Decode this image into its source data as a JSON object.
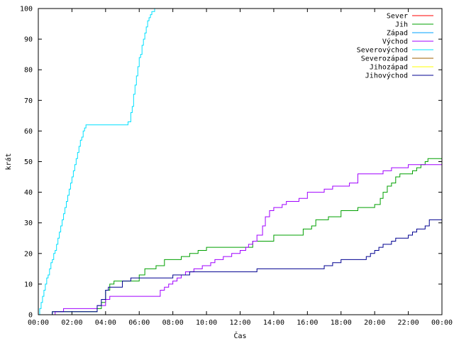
{
  "chart_data": {
    "type": "line",
    "title": "",
    "xlabel": "Čas",
    "ylabel": "krát",
    "xlim": [
      "00:00",
      "24:00"
    ],
    "ylim": [
      0,
      100
    ],
    "grid": false,
    "legend_position": "top-right",
    "x_ticks": [
      "00:00",
      "02:00",
      "04:00",
      "06:00",
      "08:00",
      "10:00",
      "12:00",
      "14:00",
      "16:00",
      "18:00",
      "20:00",
      "22:00",
      "00:00"
    ],
    "y_ticks": [
      "0",
      "10",
      "20",
      "30",
      "40",
      "50",
      "60",
      "70",
      "80",
      "90",
      "100"
    ],
    "series": [
      {
        "name": "Sever",
        "color": "#ff0000",
        "step": true,
        "x": [],
        "y": []
      },
      {
        "name": "Jih",
        "color": "#00a000",
        "step": true,
        "x": [
          "00:00",
          "00:50",
          "01:00",
          "02:00",
          "03:30",
          "03:45",
          "04:00",
          "04:15",
          "04:30",
          "05:00",
          "06:00",
          "06:20",
          "07:00",
          "07:30",
          "08:20",
          "08:30",
          "08:45",
          "09:00",
          "09:30",
          "10:00",
          "12:45",
          "13:00",
          "14:00",
          "15:45",
          "16:15",
          "16:30",
          "17:15",
          "18:00",
          "18:45",
          "19:00",
          "19:30",
          "20:00",
          "20:20",
          "20:30",
          "20:45",
          "21:00",
          "21:15",
          "21:30",
          "22:00",
          "22:15",
          "22:30",
          "22:45",
          "23:00",
          "23:10",
          "24:00"
        ],
        "y": [
          0,
          1,
          1,
          1,
          2,
          4,
          8,
          10,
          11,
          11,
          13,
          15,
          16,
          18,
          18,
          19,
          19,
          20,
          21,
          22,
          24,
          24,
          26,
          28,
          29,
          31,
          32,
          34,
          34,
          35,
          35,
          36,
          38,
          40,
          42,
          43,
          45,
          46,
          46,
          47,
          48,
          49,
          50,
          51,
          51
        ]
      },
      {
        "name": "Západ",
        "color": "#00a0ff",
        "step": true,
        "x": [],
        "y": []
      },
      {
        "name": "Východ",
        "color": "#a000ff",
        "step": true,
        "x": [
          "00:00",
          "01:00",
          "01:30",
          "02:00",
          "03:00",
          "03:30",
          "04:00",
          "04:15",
          "05:00",
          "06:00",
          "06:30",
          "07:00",
          "07:15",
          "07:30",
          "07:45",
          "08:00",
          "08:15",
          "08:30",
          "08:45",
          "09:15",
          "09:45",
          "10:15",
          "10:30",
          "11:00",
          "11:30",
          "12:00",
          "12:20",
          "12:30",
          "12:45",
          "13:00",
          "13:20",
          "13:30",
          "13:45",
          "14:00",
          "14:30",
          "14:45",
          "15:00",
          "15:30",
          "16:00",
          "17:00",
          "17:30",
          "18:00",
          "18:30",
          "19:00",
          "20:00",
          "20:30",
          "21:00",
          "22:00",
          "22:30",
          "24:00"
        ],
        "y": [
          0,
          1,
          2,
          2,
          2,
          3,
          5,
          6,
          6,
          6,
          6,
          6,
          8,
          9,
          10,
          11,
          12,
          13,
          14,
          15,
          16,
          17,
          18,
          19,
          20,
          21,
          22,
          23,
          24,
          26,
          29,
          32,
          34,
          35,
          36,
          37,
          37,
          38,
          40,
          41,
          42,
          42,
          43,
          46,
          46,
          47,
          48,
          49,
          49,
          49
        ]
      },
      {
        "name": "Severovýchod",
        "color": "#00e0ff",
        "step": true,
        "x": [
          "00:00",
          "00:05",
          "00:10",
          "00:15",
          "00:20",
          "00:25",
          "00:30",
          "00:35",
          "00:40",
          "00:45",
          "00:50",
          "00:55",
          "01:00",
          "01:05",
          "01:10",
          "01:15",
          "01:20",
          "01:25",
          "01:30",
          "01:35",
          "01:40",
          "01:45",
          "01:50",
          "01:55",
          "02:00",
          "02:05",
          "02:10",
          "02:15",
          "02:20",
          "02:25",
          "02:30",
          "02:35",
          "02:40",
          "02:45",
          "02:50",
          "02:55",
          "03:00",
          "03:05",
          "03:10",
          "03:15",
          "03:20",
          "03:25",
          "03:30",
          "03:35",
          "03:40",
          "03:45",
          "03:50",
          "04:00",
          "04:30",
          "04:45",
          "04:50",
          "05:00",
          "05:05",
          "05:10",
          "05:15",
          "05:20",
          "05:25",
          "05:30",
          "05:35",
          "05:40",
          "05:45",
          "05:50",
          "05:55",
          "06:00",
          "06:05",
          "06:10",
          "06:15",
          "06:20",
          "06:25",
          "06:30",
          "06:35",
          "06:40",
          "06:45",
          "06:50",
          "06:55",
          "07:00"
        ],
        "y": [
          0,
          2,
          4,
          6,
          8,
          10,
          12,
          13,
          15,
          17,
          18,
          20,
          21,
          23,
          25,
          27,
          29,
          31,
          33,
          35,
          37,
          39,
          41,
          43,
          45,
          47,
          49,
          51,
          53,
          55,
          57,
          58,
          60,
          61,
          62,
          62,
          62,
          62,
          62,
          62,
          62,
          62,
          62,
          62,
          62,
          62,
          62,
          62,
          62,
          62,
          62,
          62,
          62,
          62,
          62,
          63,
          63,
          66,
          68,
          72,
          75,
          78,
          81,
          84,
          85,
          88,
          90,
          92,
          94,
          96,
          97,
          98,
          99,
          99,
          100,
          100
        ]
      },
      {
        "name": "Severozápad",
        "color": "#a06000",
        "step": true,
        "x": [],
        "y": []
      },
      {
        "name": "Jihozápad",
        "color": "#ffff00",
        "step": true,
        "x": [],
        "y": []
      },
      {
        "name": "Jihovýchod",
        "color": "#000090",
        "step": true,
        "x": [
          "00:00",
          "00:50",
          "01:00",
          "01:45",
          "02:00",
          "03:30",
          "03:45",
          "04:00",
          "04:10",
          "04:30",
          "05:00",
          "05:30",
          "06:00",
          "07:00",
          "08:00",
          "09:00",
          "10:00",
          "11:00",
          "12:00",
          "13:00",
          "14:00",
          "15:00",
          "16:00",
          "16:30",
          "17:00",
          "17:30",
          "18:00",
          "19:00",
          "19:30",
          "19:45",
          "20:00",
          "20:15",
          "20:30",
          "21:00",
          "21:15",
          "21:30",
          "22:00",
          "22:15",
          "22:30",
          "23:00",
          "23:15",
          "24:00"
        ],
        "y": [
          0,
          1,
          1,
          1,
          1,
          3,
          5,
          8,
          9,
          9,
          11,
          12,
          12,
          12,
          13,
          14,
          14,
          14,
          14,
          15,
          15,
          15,
          15,
          15,
          16,
          17,
          18,
          18,
          19,
          20,
          21,
          22,
          23,
          24,
          25,
          25,
          26,
          27,
          28,
          29,
          31,
          31
        ]
      }
    ]
  }
}
